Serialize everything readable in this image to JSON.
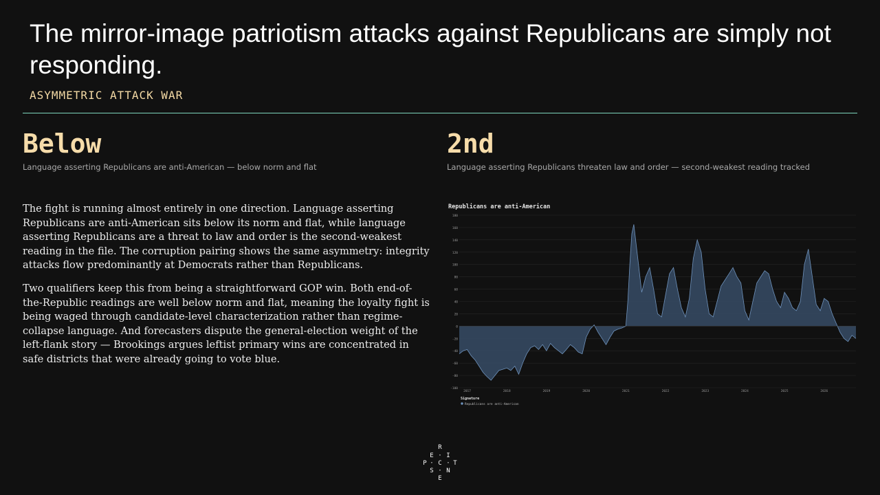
{
  "header": {
    "title": "The mirror-image patriotism attacks against Republicans are simply not responding.",
    "subtitle": "ASYMMETRIC ATTACK WAR"
  },
  "stats": [
    {
      "value": "Below",
      "caption": "Language asserting Republicans are anti-American — below norm and flat"
    },
    {
      "value": "2nd",
      "caption": "Language asserting Republicans threaten law and order — second-weakest reading tracked"
    }
  ],
  "body": {
    "paragraphs": [
      "The fight is running almost entirely in one direction. Language asserting Republicans are anti-American sits below its norm and flat, while language asserting Republicans are a threat to law and order is the second-weakest reading in the file. The corruption pairing shows the same asymmetry: integrity attacks flow predominantly at Democrats rather than Republicans.",
      "Two qualifiers keep this from being a straightforward GOP win. Both end-of-the-Republic readings are well below norm and flat, meaning the loyalty fight is being waged through candidate-level characterization rather than regime-collapse language. And forecasters dispute the general-election weight of the left-flank story — Brookings argues leftist primary wins are concentrated in safe districts that were already going to vote blue."
    ]
  },
  "logo": {
    "letters": [
      "R",
      "E",
      "I",
      "P",
      "C",
      "T",
      "S",
      "N",
      "E"
    ]
  },
  "colors": {
    "accent_rule": "#7fd8c0",
    "stat": "#f6dcaa",
    "series_fill": "#34475e",
    "series_line": "#6f93bd"
  },
  "chart_data": {
    "type": "area",
    "title": "Republicans are anti-American",
    "xlabel": "",
    "ylabel": "",
    "ylim": [
      -100,
      180
    ],
    "yticks": [
      180,
      160,
      140,
      120,
      100,
      80,
      60,
      40,
      20,
      0,
      -20,
      -40,
      -60,
      -80,
      -100
    ],
    "xlim": [
      2016.8,
      2026.8
    ],
    "xticks": [
      "2017",
      "2018",
      "2019",
      "2020",
      "2021",
      "2022",
      "2023",
      "2024",
      "2025",
      "2026"
    ],
    "grid": true,
    "legend_position": "bottom-left",
    "legend_title": "Signature",
    "series": [
      {
        "name": "Republicans are anti-American",
        "x": [
          2016.8,
          2016.9,
          2017.0,
          2017.1,
          2017.2,
          2017.3,
          2017.4,
          2017.5,
          2017.6,
          2017.7,
          2017.8,
          2017.9,
          2018.0,
          2018.1,
          2018.2,
          2018.3,
          2018.4,
          2018.5,
          2018.6,
          2018.7,
          2018.8,
          2018.9,
          2019.0,
          2019.1,
          2019.2,
          2019.3,
          2019.4,
          2019.5,
          2019.6,
          2019.7,
          2019.8,
          2019.9,
          2020.0,
          2020.1,
          2020.2,
          2020.3,
          2020.4,
          2020.5,
          2020.6,
          2020.7,
          2020.8,
          2020.9,
          2021.0,
          2021.05,
          2021.1,
          2021.15,
          2021.2,
          2021.3,
          2021.4,
          2021.5,
          2021.6,
          2021.7,
          2021.8,
          2021.9,
          2022.0,
          2022.1,
          2022.2,
          2022.3,
          2022.4,
          2022.5,
          2022.6,
          2022.7,
          2022.8,
          2022.9,
          2023.0,
          2023.1,
          2023.2,
          2023.3,
          2023.4,
          2023.5,
          2023.6,
          2023.7,
          2023.8,
          2023.9,
          2024.0,
          2024.1,
          2024.2,
          2024.3,
          2024.4,
          2024.5,
          2024.6,
          2024.7,
          2024.8,
          2024.9,
          2025.0,
          2025.1,
          2025.2,
          2025.3,
          2025.4,
          2025.5,
          2025.6,
          2025.7,
          2025.8,
          2025.9,
          2026.0,
          2026.1,
          2026.2,
          2026.3,
          2026.4,
          2026.5,
          2026.6,
          2026.7,
          2026.8
        ],
        "y": [
          -45,
          -40,
          -38,
          -48,
          -55,
          -65,
          -75,
          -82,
          -88,
          -80,
          -72,
          -70,
          -68,
          -72,
          -65,
          -78,
          -60,
          -45,
          -35,
          -32,
          -38,
          -30,
          -40,
          -28,
          -35,
          -40,
          -45,
          -38,
          -30,
          -35,
          -42,
          -45,
          -18,
          -5,
          2,
          -10,
          -20,
          -30,
          -18,
          -8,
          -5,
          -3,
          0,
          40,
          100,
          150,
          165,
          110,
          55,
          80,
          95,
          60,
          20,
          15,
          50,
          85,
          95,
          60,
          30,
          15,
          45,
          110,
          140,
          120,
          60,
          20,
          15,
          40,
          65,
          75,
          85,
          95,
          80,
          70,
          25,
          10,
          40,
          70,
          80,
          90,
          85,
          60,
          40,
          30,
          55,
          45,
          30,
          25,
          40,
          100,
          125,
          80,
          35,
          25,
          45,
          40,
          20,
          5,
          -10,
          -20,
          -25,
          -15,
          -20
        ]
      }
    ]
  }
}
